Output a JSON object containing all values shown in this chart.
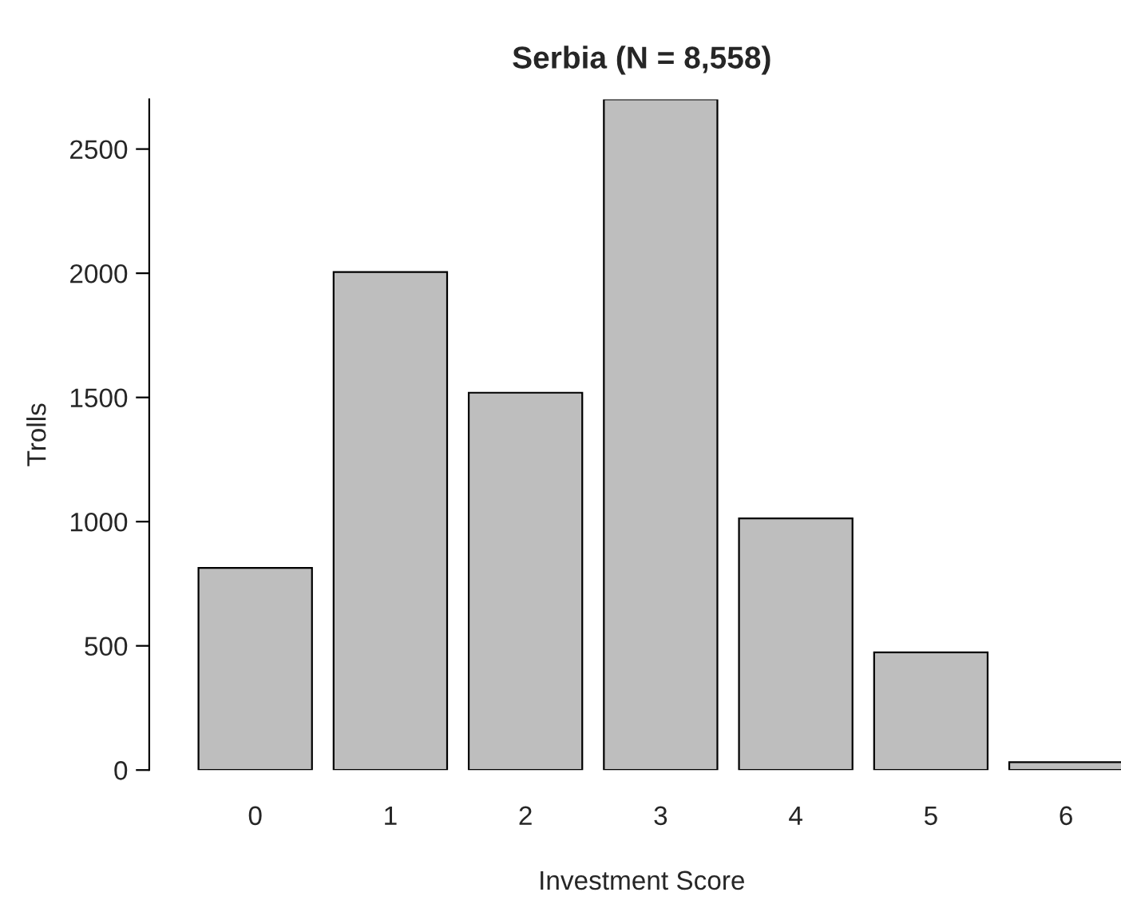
{
  "chart_data": {
    "type": "bar",
    "title": "Serbia (N = 8,558)",
    "xlabel": "Investment Score",
    "ylabel": "Trolls",
    "categories": [
      "0",
      "1",
      "2",
      "3",
      "4",
      "5",
      "6"
    ],
    "values": [
      814,
      2005,
      1519,
      2700,
      1013,
      474,
      32
    ],
    "color": "#bebebe",
    "ylim": [
      0,
      2700
    ],
    "yticks": [
      0,
      500,
      1000,
      1500,
      2000,
      2500
    ],
    "grid": false,
    "legend": false
  }
}
